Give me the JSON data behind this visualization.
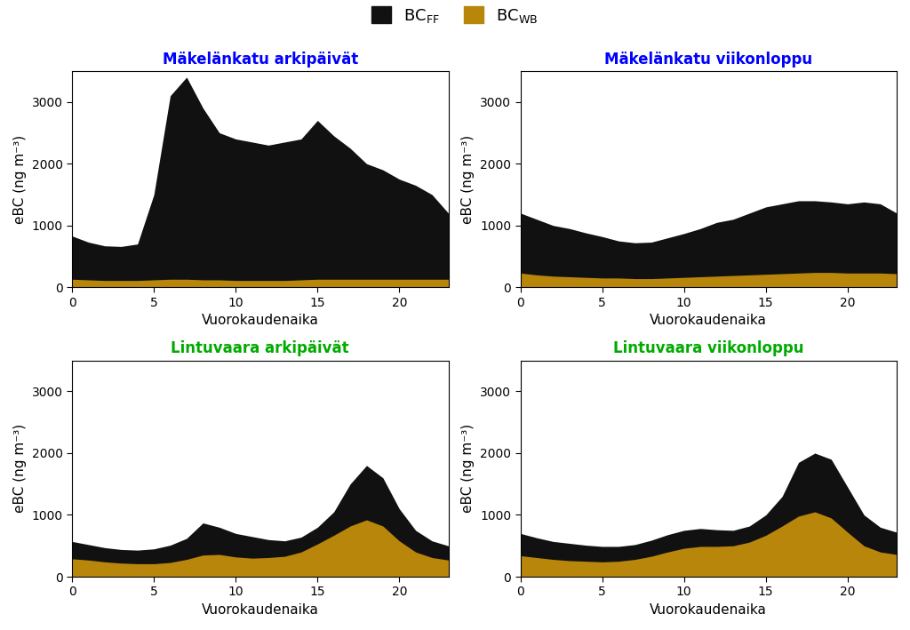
{
  "titles": [
    "Mäkelänkatu arkipäivät",
    "Mäkelänkatu viikonloppu",
    "Lintuvaara arkipäivät",
    "Lintuvaara viikonloppu"
  ],
  "title_colors": [
    "#0000FF",
    "#0000FF",
    "#00AA00",
    "#00AA00"
  ],
  "xlabel": "Vuorokaudenaika",
  "ylabel": "eBC (ng m⁻³)",
  "ylim": [
    0,
    3500
  ],
  "yticks": [
    0,
    1000,
    2000,
    3000
  ],
  "xticks": [
    0,
    5,
    10,
    15,
    20
  ],
  "hours": [
    0,
    1,
    2,
    3,
    4,
    5,
    6,
    7,
    8,
    9,
    10,
    11,
    12,
    13,
    14,
    15,
    16,
    17,
    18,
    19,
    20,
    21,
    22,
    23
  ],
  "bc_ff_color": "#111111",
  "bc_wb_color": "#B8860B",
  "data": {
    "mak_ark_ff": [
      830,
      730,
      670,
      660,
      700,
      1500,
      3100,
      3400,
      2900,
      2500,
      2400,
      2350,
      2300,
      2350,
      2400,
      2700,
      2450,
      2250,
      2000,
      1900,
      1750,
      1650,
      1500,
      1200
    ],
    "mak_ark_wb": [
      130,
      120,
      110,
      110,
      110,
      120,
      130,
      130,
      120,
      120,
      110,
      110,
      110,
      110,
      120,
      130,
      130,
      130,
      130,
      130,
      130,
      130,
      130,
      130
    ],
    "mak_vii_ff": [
      1200,
      1100,
      1000,
      950,
      880,
      820,
      750,
      720,
      730,
      800,
      870,
      950,
      1050,
      1100,
      1200,
      1300,
      1350,
      1400,
      1400,
      1380,
      1350,
      1380,
      1350,
      1200
    ],
    "mak_vii_wb": [
      230,
      200,
      180,
      170,
      160,
      150,
      150,
      140,
      140,
      150,
      160,
      170,
      180,
      190,
      200,
      210,
      220,
      230,
      240,
      240,
      230,
      230,
      230,
      220
    ],
    "lin_ark_ff": [
      570,
      520,
      470,
      440,
      430,
      450,
      510,
      620,
      870,
      800,
      700,
      650,
      600,
      580,
      640,
      800,
      1050,
      1500,
      1800,
      1600,
      1100,
      750,
      580,
      500
    ],
    "lin_ark_wb": [
      290,
      270,
      240,
      220,
      210,
      210,
      230,
      280,
      350,
      360,
      320,
      300,
      310,
      330,
      400,
      530,
      670,
      820,
      920,
      820,
      580,
      400,
      310,
      270
    ],
    "lin_vii_ff": [
      700,
      630,
      570,
      540,
      510,
      490,
      490,
      520,
      590,
      680,
      750,
      780,
      760,
      750,
      820,
      1000,
      1300,
      1850,
      2000,
      1900,
      1450,
      1000,
      800,
      720
    ],
    "lin_vii_wb": [
      340,
      310,
      280,
      260,
      250,
      240,
      250,
      280,
      330,
      400,
      460,
      490,
      490,
      500,
      560,
      670,
      820,
      980,
      1050,
      950,
      720,
      500,
      400,
      360
    ]
  }
}
